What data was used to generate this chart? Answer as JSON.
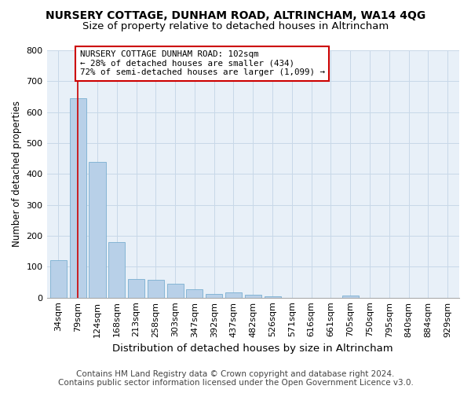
{
  "title": "NURSERY COTTAGE, DUNHAM ROAD, ALTRINCHAM, WA14 4QG",
  "subtitle": "Size of property relative to detached houses in Altrincham",
  "xlabel": "Distribution of detached houses by size in Altrincham",
  "ylabel": "Number of detached properties",
  "categories": [
    "34sqm",
    "79sqm",
    "124sqm",
    "168sqm",
    "213sqm",
    "258sqm",
    "303sqm",
    "347sqm",
    "392sqm",
    "437sqm",
    "482sqm",
    "526sqm",
    "571sqm",
    "616sqm",
    "661sqm",
    "705sqm",
    "750sqm",
    "795sqm",
    "840sqm",
    "884sqm",
    "929sqm"
  ],
  "values": [
    122,
    645,
    440,
    180,
    60,
    58,
    46,
    26,
    12,
    16,
    9,
    5,
    0,
    0,
    0,
    8,
    0,
    0,
    0,
    0,
    0
  ],
  "bar_color": "#b8d0e8",
  "bar_edge_color": "#7aaed0",
  "red_line_x": 1,
  "red_line_color": "#cc0000",
  "annotation_text": "NURSERY COTTAGE DUNHAM ROAD: 102sqm\n← 28% of detached houses are smaller (434)\n72% of semi-detached houses are larger (1,099) →",
  "annotation_box_edgecolor": "#cc0000",
  "ylim": [
    0,
    800
  ],
  "yticks": [
    0,
    100,
    200,
    300,
    400,
    500,
    600,
    700,
    800
  ],
  "grid_color": "#c8d8e8",
  "background_color": "#e8f0f8",
  "footer_line1": "Contains HM Land Registry data © Crown copyright and database right 2024.",
  "footer_line2": "Contains public sector information licensed under the Open Government Licence v3.0.",
  "title_fontsize": 10,
  "subtitle_fontsize": 9.5,
  "xlabel_fontsize": 9.5,
  "ylabel_fontsize": 8.5,
  "tick_fontsize": 8,
  "annotation_fontsize": 7.8,
  "footer_fontsize": 7.5
}
